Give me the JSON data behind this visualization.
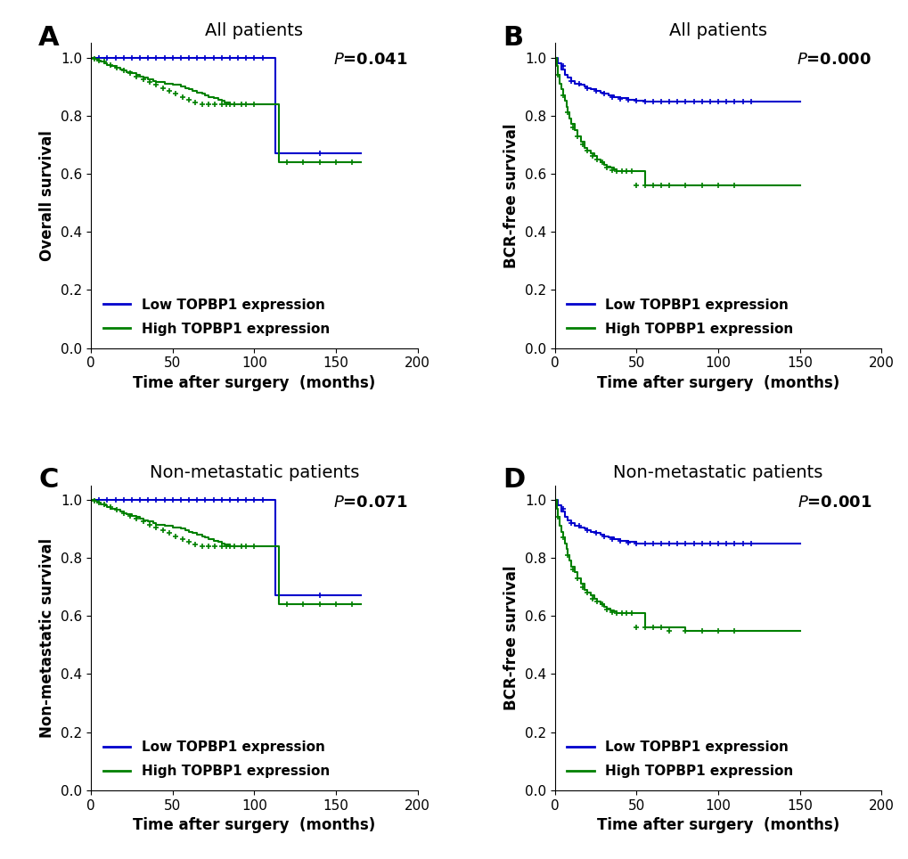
{
  "panels": [
    {
      "label": "A",
      "title": "All patients",
      "ylabel": "Overall survival",
      "xlabel": "Time after surgery  (months)",
      "pvalue": "=0.041",
      "xlim": [
        0,
        200
      ],
      "ylim": [
        0.0,
        1.05
      ],
      "xticks": [
        0,
        50,
        100,
        150,
        200
      ],
      "yticks": [
        0.0,
        0.2,
        0.4,
        0.6,
        0.8,
        1.0
      ],
      "low_x": [
        0,
        5,
        10,
        15,
        20,
        25,
        30,
        35,
        40,
        45,
        50,
        55,
        60,
        65,
        70,
        75,
        80,
        85,
        90,
        95,
        100,
        105,
        110,
        113,
        113,
        125,
        135,
        140,
        160,
        165
      ],
      "low_y": [
        1.0,
        1.0,
        1.0,
        1.0,
        1.0,
        1.0,
        1.0,
        1.0,
        1.0,
        1.0,
        1.0,
        1.0,
        1.0,
        1.0,
        1.0,
        1.0,
        1.0,
        1.0,
        1.0,
        1.0,
        1.0,
        1.0,
        1.0,
        1.0,
        0.67,
        0.67,
        0.67,
        0.67,
        0.67,
        0.67
      ],
      "low_censors_x": [
        5,
        10,
        15,
        20,
        25,
        30,
        35,
        40,
        45,
        50,
        55,
        60,
        65,
        70,
        75,
        80,
        85,
        90,
        95,
        100,
        105,
        140
      ],
      "low_censors_y": [
        1.0,
        1.0,
        1.0,
        1.0,
        1.0,
        1.0,
        1.0,
        1.0,
        1.0,
        1.0,
        1.0,
        1.0,
        1.0,
        1.0,
        1.0,
        1.0,
        1.0,
        1.0,
        1.0,
        1.0,
        1.0,
        0.67
      ],
      "high_x": [
        0,
        2,
        4,
        6,
        8,
        10,
        12,
        15,
        18,
        20,
        22,
        25,
        28,
        30,
        32,
        35,
        38,
        40,
        45,
        50,
        55,
        58,
        60,
        62,
        65,
        68,
        70,
        72,
        75,
        78,
        80,
        82,
        85,
        88,
        90,
        95,
        100,
        105,
        110,
        113,
        115,
        120,
        125,
        130,
        135,
        140,
        145,
        150,
        155,
        160,
        165
      ],
      "high_y": [
        1.0,
        0.995,
        0.99,
        0.985,
        0.98,
        0.975,
        0.97,
        0.965,
        0.96,
        0.955,
        0.95,
        0.945,
        0.94,
        0.935,
        0.93,
        0.925,
        0.92,
        0.915,
        0.91,
        0.905,
        0.9,
        0.895,
        0.89,
        0.885,
        0.88,
        0.875,
        0.87,
        0.865,
        0.86,
        0.855,
        0.85,
        0.845,
        0.84,
        0.84,
        0.84,
        0.84,
        0.84,
        0.84,
        0.84,
        0.84,
        0.64,
        0.64,
        0.64,
        0.64,
        0.64,
        0.64,
        0.64,
        0.64,
        0.64,
        0.64,
        0.64
      ],
      "high_censors_x": [
        2,
        5,
        8,
        12,
        16,
        20,
        24,
        28,
        32,
        36,
        40,
        44,
        48,
        52,
        56,
        60,
        64,
        68,
        72,
        76,
        80,
        83,
        85,
        88,
        92,
        95,
        100,
        120,
        130,
        140,
        150,
        160
      ],
      "high_censors_y": [
        0.995,
        0.99,
        0.985,
        0.975,
        0.965,
        0.955,
        0.945,
        0.935,
        0.925,
        0.915,
        0.905,
        0.895,
        0.885,
        0.875,
        0.865,
        0.855,
        0.845,
        0.84,
        0.84,
        0.84,
        0.84,
        0.84,
        0.84,
        0.84,
        0.84,
        0.84,
        0.84,
        0.64,
        0.64,
        0.64,
        0.64,
        0.64
      ]
    },
    {
      "label": "B",
      "title": "All patients",
      "ylabel": "BCR-free survival",
      "xlabel": "Time after surgery  (months)",
      "pvalue": "=0.000",
      "xlim": [
        0,
        200
      ],
      "ylim": [
        0.0,
        1.05
      ],
      "xticks": [
        0,
        50,
        100,
        150,
        200
      ],
      "yticks": [
        0.0,
        0.2,
        0.4,
        0.6,
        0.8,
        1.0
      ],
      "low_x": [
        0,
        2,
        4,
        6,
        8,
        10,
        12,
        15,
        18,
        20,
        22,
        25,
        28,
        30,
        33,
        36,
        40,
        45,
        50,
        55,
        60,
        65,
        70,
        80,
        90,
        100,
        110,
        120,
        150
      ],
      "low_y": [
        1.0,
        0.98,
        0.96,
        0.94,
        0.93,
        0.92,
        0.91,
        0.905,
        0.9,
        0.895,
        0.89,
        0.885,
        0.88,
        0.875,
        0.87,
        0.865,
        0.86,
        0.855,
        0.85,
        0.848,
        0.848,
        0.848,
        0.848,
        0.848,
        0.848,
        0.848,
        0.848,
        0.848,
        0.848
      ],
      "low_censors_x": [
        5,
        10,
        15,
        20,
        25,
        30,
        35,
        40,
        45,
        50,
        55,
        60,
        65,
        70,
        75,
        80,
        85,
        90,
        95,
        100,
        105,
        110,
        115,
        120
      ],
      "low_censors_y": [
        0.97,
        0.92,
        0.91,
        0.895,
        0.885,
        0.875,
        0.865,
        0.858,
        0.853,
        0.85,
        0.848,
        0.848,
        0.848,
        0.848,
        0.848,
        0.848,
        0.848,
        0.848,
        0.848,
        0.848,
        0.848,
        0.848,
        0.848,
        0.848
      ],
      "high_x": [
        0,
        1,
        2,
        3,
        4,
        5,
        6,
        7,
        8,
        9,
        10,
        12,
        14,
        16,
        18,
        20,
        22,
        24,
        26,
        28,
        30,
        32,
        34,
        36,
        38,
        40,
        42,
        44,
        46,
        48,
        50,
        55,
        60,
        65,
        70,
        80,
        90,
        100,
        110,
        150
      ],
      "high_y": [
        1.0,
        0.97,
        0.94,
        0.91,
        0.89,
        0.87,
        0.85,
        0.83,
        0.81,
        0.79,
        0.77,
        0.75,
        0.73,
        0.71,
        0.69,
        0.68,
        0.67,
        0.66,
        0.65,
        0.64,
        0.63,
        0.625,
        0.62,
        0.615,
        0.61,
        0.61,
        0.61,
        0.61,
        0.61,
        0.61,
        0.61,
        0.56,
        0.56,
        0.56,
        0.56,
        0.56,
        0.56,
        0.56,
        0.56,
        0.56
      ],
      "high_censors_x": [
        2,
        5,
        8,
        11,
        14,
        17,
        20,
        23,
        26,
        29,
        32,
        35,
        38,
        41,
        44,
        47,
        50,
        55,
        60,
        65,
        70,
        80,
        90,
        100,
        110
      ],
      "high_censors_y": [
        0.94,
        0.87,
        0.81,
        0.76,
        0.73,
        0.7,
        0.68,
        0.66,
        0.65,
        0.64,
        0.622,
        0.612,
        0.61,
        0.61,
        0.61,
        0.61,
        0.56,
        0.56,
        0.56,
        0.56,
        0.56,
        0.56,
        0.56,
        0.56,
        0.56
      ]
    },
    {
      "label": "C",
      "title": "Non-metastatic patients",
      "ylabel": "Non-metastatic survival",
      "xlabel": "Time after surgery  (months)",
      "pvalue": "=0.071",
      "xlim": [
        0,
        200
      ],
      "ylim": [
        0.0,
        1.05
      ],
      "xticks": [
        0,
        50,
        100,
        150,
        200
      ],
      "yticks": [
        0.0,
        0.2,
        0.4,
        0.6,
        0.8,
        1.0
      ],
      "low_x": [
        0,
        5,
        10,
        15,
        20,
        25,
        30,
        35,
        40,
        45,
        50,
        55,
        60,
        65,
        70,
        75,
        80,
        85,
        90,
        95,
        100,
        105,
        110,
        113,
        113,
        125,
        135,
        140,
        160,
        165
      ],
      "low_y": [
        1.0,
        1.0,
        1.0,
        1.0,
        1.0,
        1.0,
        1.0,
        1.0,
        1.0,
        1.0,
        1.0,
        1.0,
        1.0,
        1.0,
        1.0,
        1.0,
        1.0,
        1.0,
        1.0,
        1.0,
        1.0,
        1.0,
        1.0,
        1.0,
        0.67,
        0.67,
        0.67,
        0.67,
        0.67,
        0.67
      ],
      "low_censors_x": [
        5,
        10,
        15,
        20,
        25,
        30,
        35,
        40,
        45,
        50,
        55,
        60,
        65,
        70,
        75,
        80,
        85,
        90,
        95,
        100,
        105,
        140
      ],
      "low_censors_y": [
        1.0,
        1.0,
        1.0,
        1.0,
        1.0,
        1.0,
        1.0,
        1.0,
        1.0,
        1.0,
        1.0,
        1.0,
        1.0,
        1.0,
        1.0,
        1.0,
        1.0,
        1.0,
        1.0,
        1.0,
        1.0,
        0.67
      ],
      "high_x": [
        0,
        2,
        4,
        6,
        8,
        10,
        12,
        15,
        18,
        20,
        22,
        25,
        28,
        30,
        32,
        35,
        38,
        40,
        45,
        50,
        55,
        58,
        60,
        62,
        65,
        68,
        70,
        72,
        75,
        78,
        80,
        82,
        85,
        88,
        90,
        95,
        100,
        105,
        110,
        113,
        115,
        120,
        125,
        130,
        135,
        140,
        145,
        150,
        155,
        160,
        165
      ],
      "high_y": [
        1.0,
        0.995,
        0.99,
        0.985,
        0.98,
        0.975,
        0.97,
        0.965,
        0.96,
        0.955,
        0.95,
        0.945,
        0.94,
        0.935,
        0.93,
        0.925,
        0.92,
        0.915,
        0.91,
        0.905,
        0.9,
        0.895,
        0.89,
        0.885,
        0.88,
        0.875,
        0.87,
        0.865,
        0.86,
        0.855,
        0.85,
        0.845,
        0.84,
        0.84,
        0.84,
        0.84,
        0.84,
        0.84,
        0.84,
        0.84,
        0.64,
        0.64,
        0.64,
        0.64,
        0.64,
        0.64,
        0.64,
        0.64,
        0.64,
        0.64,
        0.64
      ],
      "high_censors_x": [
        2,
        5,
        8,
        12,
        16,
        20,
        24,
        28,
        32,
        36,
        40,
        44,
        48,
        52,
        56,
        60,
        64,
        68,
        72,
        76,
        80,
        83,
        85,
        88,
        92,
        95,
        100,
        120,
        130,
        140,
        150,
        160
      ],
      "high_censors_y": [
        0.995,
        0.99,
        0.985,
        0.975,
        0.965,
        0.955,
        0.945,
        0.935,
        0.925,
        0.915,
        0.905,
        0.895,
        0.885,
        0.875,
        0.865,
        0.855,
        0.845,
        0.84,
        0.84,
        0.84,
        0.84,
        0.84,
        0.84,
        0.84,
        0.84,
        0.84,
        0.84,
        0.64,
        0.64,
        0.64,
        0.64,
        0.64
      ]
    },
    {
      "label": "D",
      "title": "Non-metastatic patients",
      "ylabel": "BCR-free survival",
      "xlabel": "Time after surgery  (months)",
      "pvalue": "=0.001",
      "xlim": [
        0,
        200
      ],
      "ylim": [
        0.0,
        1.05
      ],
      "xticks": [
        0,
        50,
        100,
        150,
        200
      ],
      "yticks": [
        0.0,
        0.2,
        0.4,
        0.6,
        0.8,
        1.0
      ],
      "low_x": [
        0,
        2,
        4,
        6,
        8,
        10,
        12,
        15,
        18,
        20,
        22,
        25,
        28,
        30,
        33,
        36,
        40,
        45,
        50,
        55,
        60,
        65,
        70,
        80,
        90,
        100,
        110,
        120,
        150
      ],
      "low_y": [
        1.0,
        0.98,
        0.96,
        0.94,
        0.93,
        0.92,
        0.91,
        0.905,
        0.9,
        0.895,
        0.89,
        0.885,
        0.88,
        0.875,
        0.87,
        0.865,
        0.86,
        0.855,
        0.85,
        0.848,
        0.848,
        0.848,
        0.848,
        0.848,
        0.848,
        0.848,
        0.848,
        0.848,
        0.848
      ],
      "low_censors_x": [
        5,
        10,
        15,
        20,
        25,
        30,
        35,
        40,
        45,
        50,
        55,
        60,
        65,
        70,
        75,
        80,
        85,
        90,
        95,
        100,
        105,
        110,
        115,
        120
      ],
      "low_censors_y": [
        0.97,
        0.92,
        0.91,
        0.895,
        0.885,
        0.875,
        0.865,
        0.858,
        0.853,
        0.85,
        0.848,
        0.848,
        0.848,
        0.848,
        0.848,
        0.848,
        0.848,
        0.848,
        0.848,
        0.848,
        0.848,
        0.848,
        0.848,
        0.848
      ],
      "high_x": [
        0,
        1,
        2,
        3,
        4,
        5,
        6,
        7,
        8,
        9,
        10,
        12,
        14,
        16,
        18,
        20,
        22,
        24,
        26,
        28,
        30,
        32,
        34,
        36,
        38,
        40,
        42,
        44,
        46,
        48,
        50,
        55,
        60,
        65,
        70,
        80,
        90,
        100,
        110,
        150
      ],
      "high_y": [
        1.0,
        0.97,
        0.94,
        0.91,
        0.89,
        0.87,
        0.85,
        0.83,
        0.81,
        0.79,
        0.77,
        0.75,
        0.73,
        0.71,
        0.69,
        0.68,
        0.67,
        0.66,
        0.65,
        0.64,
        0.63,
        0.625,
        0.62,
        0.615,
        0.61,
        0.61,
        0.61,
        0.61,
        0.61,
        0.61,
        0.61,
        0.56,
        0.56,
        0.56,
        0.56,
        0.55,
        0.55,
        0.55,
        0.55,
        0.55
      ],
      "high_censors_x": [
        2,
        5,
        8,
        11,
        14,
        17,
        20,
        23,
        26,
        29,
        32,
        35,
        38,
        41,
        44,
        47,
        50,
        55,
        60,
        65,
        70,
        80,
        90,
        100,
        110
      ],
      "high_censors_y": [
        0.94,
        0.87,
        0.81,
        0.76,
        0.73,
        0.7,
        0.68,
        0.66,
        0.65,
        0.64,
        0.622,
        0.612,
        0.61,
        0.61,
        0.61,
        0.61,
        0.56,
        0.56,
        0.56,
        0.56,
        0.55,
        0.55,
        0.55,
        0.55,
        0.55
      ]
    }
  ],
  "low_color": "#0000CC",
  "high_color": "#008000",
  "legend_low": "Low TOPBP1 expression",
  "legend_high": "High TOPBP1 expression",
  "background_color": "#ffffff",
  "panel_label_fontsize": 22,
  "title_fontsize": 14,
  "axis_label_fontsize": 12,
  "tick_fontsize": 11,
  "legend_fontsize": 11,
  "pvalue_fontsize": 13
}
